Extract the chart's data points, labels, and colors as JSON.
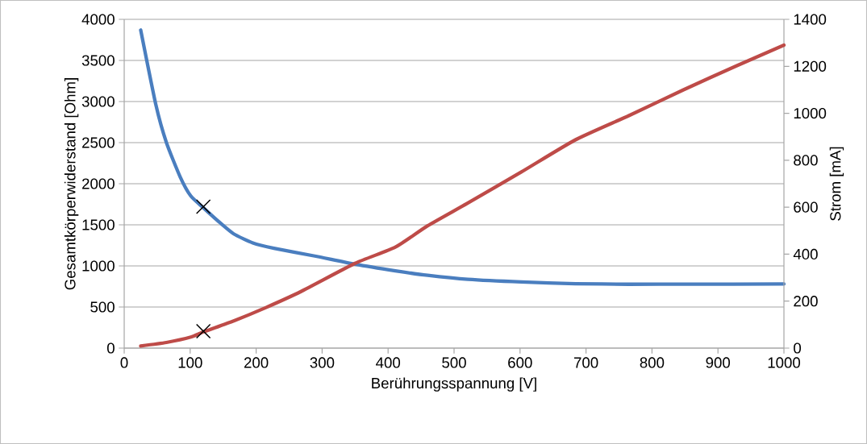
{
  "chart_data": {
    "type": "line",
    "xlabel": "Berührungsspannung [V]",
    "ylabel": "Gesamtkörperwiderstand [Ohm]",
    "y2label": "Strom [mA]",
    "xlim": [
      0,
      1000
    ],
    "xticks": [
      0,
      100,
      200,
      300,
      400,
      500,
      600,
      700,
      800,
      900,
      1000
    ],
    "ylim": [
      0,
      4000
    ],
    "yticks": [
      0,
      500,
      1000,
      1500,
      2000,
      2500,
      3000,
      3500,
      4000
    ],
    "y2lim": [
      0,
      1400
    ],
    "y2ticks": [
      0,
      200,
      400,
      600,
      800,
      1000,
      1200,
      1400
    ],
    "grid": "y",
    "series": [
      {
        "color": "#4a7ebf",
        "axis": "y",
        "x": [
          25,
          48,
          64,
          85,
          101,
          121,
          146,
          166,
          195,
          227,
          289,
          350,
          411,
          460,
          521,
          602,
          684,
          765,
          850,
          1000
        ],
        "values": [
          3870,
          2960,
          2500,
          2080,
          1850,
          1700,
          1520,
          1390,
          1280,
          1215,
          1120,
          1020,
          940,
          885,
          836,
          804,
          784,
          777,
          778,
          780
        ]
      },
      {
        "color": "#be4b48",
        "axis": "y2",
        "x": [
          25,
          64,
          101,
          121,
          166,
          215,
          268,
          350,
          411,
          460,
          521,
          602,
          684,
          765,
          847,
          928,
          1000
        ],
        "values": [
          9,
          24,
          47,
          70,
          116,
          173,
          241,
          361,
          430,
          521,
          618,
          750,
          887,
          990,
          1099,
          1202,
          1290
        ]
      },
      {
        "type": "scatter",
        "marker": "cross",
        "color": "#000000",
        "axis": "y",
        "x": [
          120
        ],
        "values": [
          1720
        ]
      },
      {
        "type": "scatter",
        "marker": "cross",
        "color": "#000000",
        "axis": "y2",
        "x": [
          120
        ],
        "values": [
          72
        ]
      }
    ]
  }
}
